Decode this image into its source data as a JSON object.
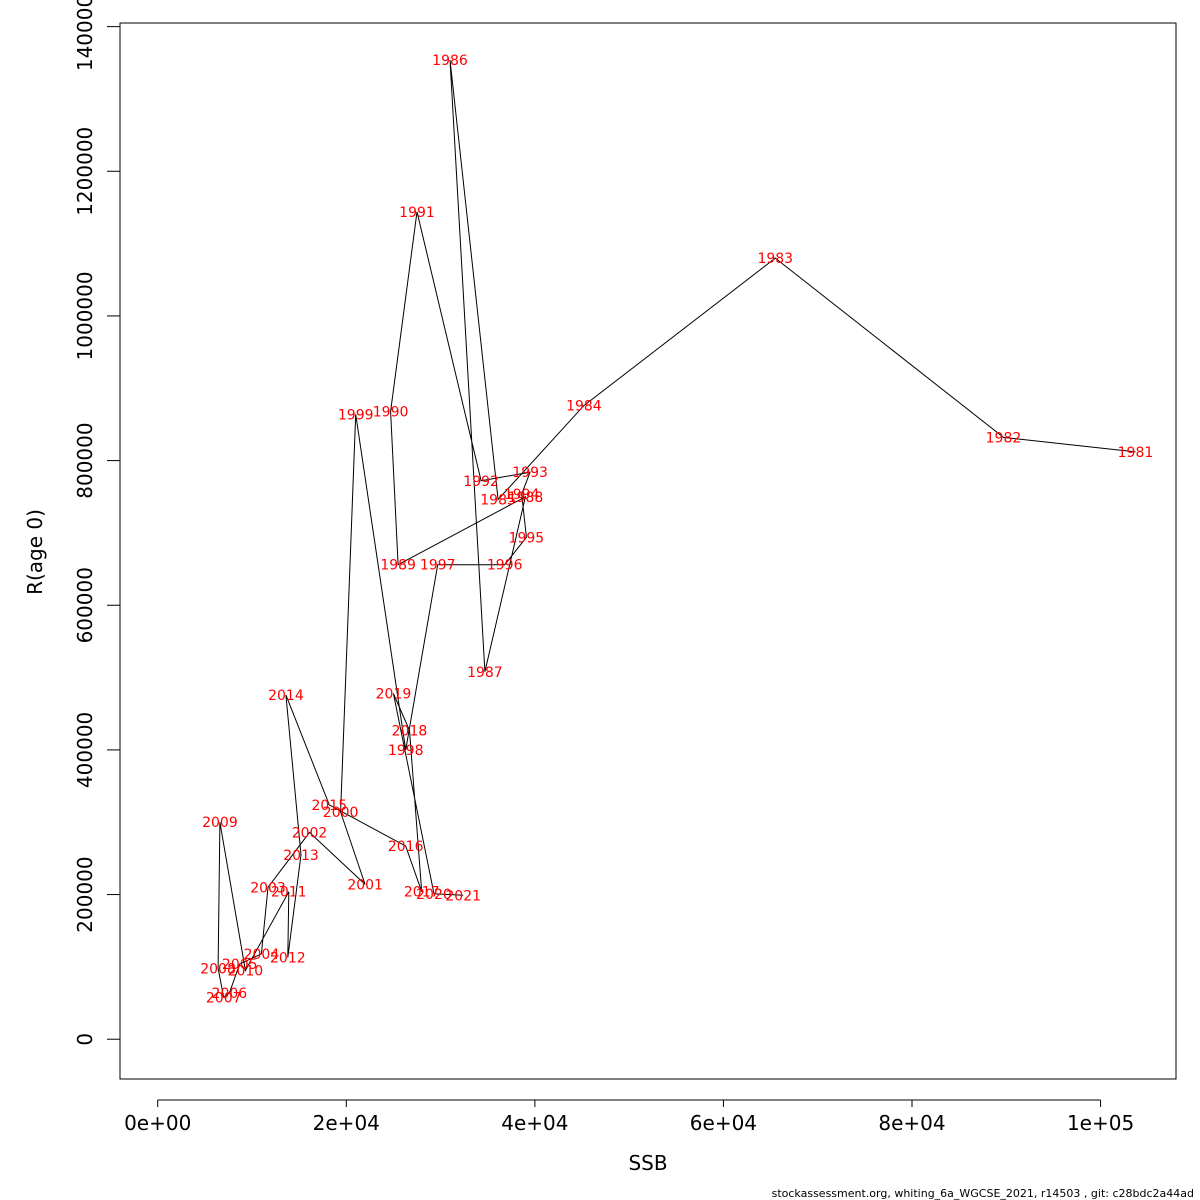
{
  "chart_data": {
    "type": "line",
    "xlabel": "SSB",
    "ylabel": "R(age 0)",
    "xlim": [
      -4000,
      108000
    ],
    "ylim": [
      -55000,
      1405000
    ],
    "x_ticks": [
      0,
      20000,
      40000,
      60000,
      80000,
      100000
    ],
    "x_tick_labels": [
      "0e+00",
      "2e+04",
      "4e+04",
      "6e+04",
      "8e+04",
      "1e+05"
    ],
    "y_ticks": [
      0,
      200000,
      400000,
      600000,
      800000,
      1000000,
      1200000,
      1400000
    ],
    "y_tick_labels": [
      "0",
      "200000",
      "400000",
      "600000",
      "800000",
      "1000000",
      "1200000",
      "1400000"
    ],
    "grid": false,
    "line_color": "#000000",
    "label_color": "#ff0000",
    "points": [
      {
        "year": "1981",
        "ssb": 103700,
        "r": 812000
      },
      {
        "year": "1982",
        "ssb": 89700,
        "r": 832000
      },
      {
        "year": "1983",
        "ssb": 65500,
        "r": 1080000
      },
      {
        "year": "1984",
        "ssb": 45200,
        "r": 876000
      },
      {
        "year": "1985",
        "ssb": 36100,
        "r": 746000
      },
      {
        "year": "1986",
        "ssb": 31000,
        "r": 1354000
      },
      {
        "year": "1987",
        "ssb": 34700,
        "r": 508000
      },
      {
        "year": "1988",
        "ssb": 39000,
        "r": 750000
      },
      {
        "year": "1989",
        "ssb": 25500,
        "r": 656000
      },
      {
        "year": "1990",
        "ssb": 24700,
        "r": 868000
      },
      {
        "year": "1991",
        "ssb": 27500,
        "r": 1144000
      },
      {
        "year": "1992",
        "ssb": 34300,
        "r": 772000
      },
      {
        "year": "1993",
        "ssb": 39500,
        "r": 784000
      },
      {
        "year": "1994",
        "ssb": 38600,
        "r": 754000
      },
      {
        "year": "1995",
        "ssb": 39100,
        "r": 694000
      },
      {
        "year": "1996",
        "ssb": 36800,
        "r": 656000
      },
      {
        "year": "1997",
        "ssb": 29700,
        "r": 656000
      },
      {
        "year": "1998",
        "ssb": 26300,
        "r": 400000
      },
      {
        "year": "1999",
        "ssb": 21000,
        "r": 864000
      },
      {
        "year": "2000",
        "ssb": 19400,
        "r": 314000
      },
      {
        "year": "2001",
        "ssb": 22000,
        "r": 214000
      },
      {
        "year": "2002",
        "ssb": 16100,
        "r": 286000
      },
      {
        "year": "2003",
        "ssb": 11700,
        "r": 210000
      },
      {
        "year": "2004",
        "ssb": 11000,
        "r": 118000
      },
      {
        "year": "2005",
        "ssb": 8700,
        "r": 104000
      },
      {
        "year": "2006",
        "ssb": 7600,
        "r": 64000
      },
      {
        "year": "2007",
        "ssb": 7000,
        "r": 58000
      },
      {
        "year": "2008",
        "ssb": 6400,
        "r": 98000
      },
      {
        "year": "2009",
        "ssb": 6600,
        "r": 300000
      },
      {
        "year": "2010",
        "ssb": 9300,
        "r": 95000
      },
      {
        "year": "2011",
        "ssb": 13900,
        "r": 204000
      },
      {
        "year": "2012",
        "ssb": 13800,
        "r": 113000
      },
      {
        "year": "2013",
        "ssb": 15200,
        "r": 255000
      },
      {
        "year": "2014",
        "ssb": 13600,
        "r": 476000
      },
      {
        "year": "2015",
        "ssb": 18200,
        "r": 324000
      },
      {
        "year": "2016",
        "ssb": 26300,
        "r": 267000
      },
      {
        "year": "2017",
        "ssb": 28000,
        "r": 204000
      },
      {
        "year": "2018",
        "ssb": 26700,
        "r": 427000
      },
      {
        "year": "2019",
        "ssb": 25000,
        "r": 478000
      },
      {
        "year": "2020",
        "ssb": 29300,
        "r": 201000
      },
      {
        "year": "2021",
        "ssb": 32400,
        "r": 199000
      }
    ]
  },
  "footer": {
    "text": "stockassessment.org, whiting_6a_WGCSE_2021, r14503 , git: c28bdc2a44ad"
  }
}
